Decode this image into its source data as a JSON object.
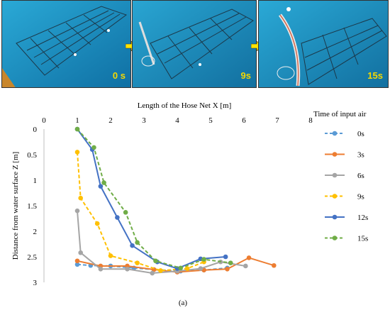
{
  "photos": [
    {
      "time_label": "0 s"
    },
    {
      "time_label": "9s"
    },
    {
      "time_label": "15s"
    }
  ],
  "chart_data": {
    "type": "line",
    "xlabel": "Length of the Hose Net X [m]",
    "ylabel": "Distance from water surface  Z [m]",
    "x_axis_position": "top",
    "xlim": [
      0,
      8
    ],
    "ylim": [
      0,
      3
    ],
    "y_inverted": true,
    "x_ticks": [
      "0",
      "1",
      "2",
      "3",
      "4",
      "5",
      "6",
      "7",
      "8"
    ],
    "y_ticks": [
      "0",
      "0.5",
      "1",
      "1.5",
      "2",
      "2.5",
      "3"
    ],
    "grid": false,
    "legend_title": "Time of input air",
    "legend_position": "right",
    "series": [
      {
        "name": "0s",
        "color": "#5b9bd5",
        "dashed": true,
        "points": [
          [
            1.0,
            2.65
          ],
          [
            1.4,
            2.67
          ],
          [
            2.0,
            2.68
          ],
          [
            2.7,
            2.72
          ],
          [
            3.3,
            2.75
          ],
          [
            4.1,
            2.78
          ],
          [
            4.8,
            2.76
          ],
          [
            5.5,
            2.72
          ]
        ]
      },
      {
        "name": "3s",
        "color": "#ed7d31",
        "dashed": false,
        "points": [
          [
            1.0,
            2.58
          ],
          [
            1.7,
            2.68
          ],
          [
            2.5,
            2.68
          ],
          [
            3.3,
            2.75
          ],
          [
            4.0,
            2.8
          ],
          [
            4.8,
            2.76
          ],
          [
            5.5,
            2.74
          ],
          [
            6.15,
            2.52
          ],
          [
            6.9,
            2.67
          ]
        ]
      },
      {
        "name": "6s",
        "color": "#a5a5a5",
        "dashed": false,
        "points": [
          [
            1.0,
            1.6
          ],
          [
            1.1,
            2.42
          ],
          [
            1.7,
            2.74
          ],
          [
            2.5,
            2.74
          ],
          [
            3.25,
            2.82
          ],
          [
            4.0,
            2.78
          ],
          [
            4.7,
            2.73
          ],
          [
            5.3,
            2.6
          ],
          [
            6.05,
            2.68
          ]
        ]
      },
      {
        "name": "9s",
        "color": "#ffc000",
        "dashed": true,
        "points": [
          [
            1.0,
            0.45
          ],
          [
            1.1,
            1.35
          ],
          [
            1.6,
            1.85
          ],
          [
            2.0,
            2.48
          ],
          [
            2.8,
            2.62
          ],
          [
            3.5,
            2.77
          ],
          [
            4.3,
            2.73
          ],
          [
            4.8,
            2.6
          ]
        ]
      },
      {
        "name": "12s",
        "color": "#4472c4",
        "dashed": false,
        "points": [
          [
            1.0,
            0.0
          ],
          [
            1.45,
            0.4
          ],
          [
            1.7,
            1.12
          ],
          [
            2.2,
            1.73
          ],
          [
            2.65,
            2.28
          ],
          [
            3.4,
            2.6
          ],
          [
            4.0,
            2.73
          ],
          [
            4.7,
            2.54
          ],
          [
            5.45,
            2.5
          ]
        ]
      },
      {
        "name": "15s",
        "color": "#70ad47",
        "dashed": true,
        "points": [
          [
            1.0,
            0.0
          ],
          [
            1.5,
            0.36
          ],
          [
            1.8,
            1.05
          ],
          [
            2.45,
            1.63
          ],
          [
            2.8,
            2.22
          ],
          [
            3.35,
            2.58
          ],
          [
            4.1,
            2.72
          ],
          [
            4.8,
            2.55
          ],
          [
            5.6,
            2.62
          ]
        ]
      }
    ]
  },
  "caption": "(a)"
}
